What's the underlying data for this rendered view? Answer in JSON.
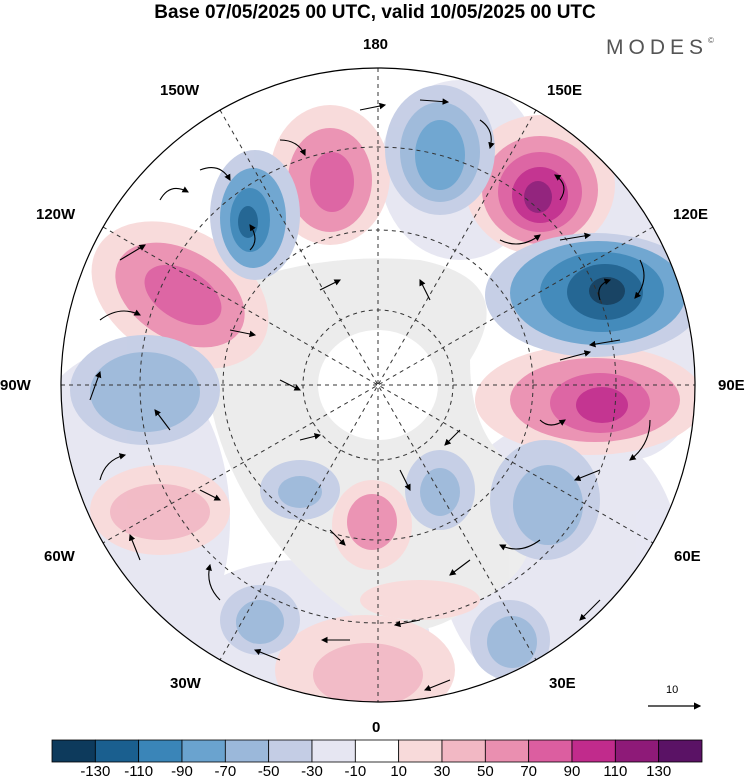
{
  "title": "Base 07/05/2025 00 UTC, valid 10/05/2025 00 UTC",
  "brand": "MODES",
  "brand_mark": "©",
  "longitude_labels": {
    "lon_180": "180",
    "lon_150e": "150E",
    "lon_120e": "120E",
    "lon_90e": "90E",
    "lon_60e": "60E",
    "lon_30e": "30E",
    "lon_0": "0",
    "lon_30w": "30W",
    "lon_60w": "60W",
    "lon_90w": "90W",
    "lon_120w": "120W",
    "lon_150w": "150W"
  },
  "reference_vector_label": "10",
  "colorbar": {
    "labels": [
      "-130",
      "-110",
      "-90",
      "-70",
      "-50",
      "-30",
      "-10",
      "10",
      "30",
      "50",
      "70",
      "90",
      "110",
      "130"
    ],
    "colors": [
      "#0d3a5c",
      "#1a5f8f",
      "#3a85b8",
      "#6aa3cf",
      "#9bb8da",
      "#c4cde5",
      "#e6e6f2",
      "#ffffff",
      "#f8dada",
      "#f2b8c4",
      "#ea8fb0",
      "#dc5ea0",
      "#c12b8c",
      "#8e1a78",
      "#5a1265"
    ]
  },
  "colors": {
    "land": "#ececec",
    "blue_deep": "#0d3a5c",
    "blue_mid": "#3a85b8",
    "blue_light": "#9bb8da",
    "pink_light": "#f2b8c4",
    "pink_mid": "#dc5ea0",
    "purple_deep": "#5a1265"
  }
}
